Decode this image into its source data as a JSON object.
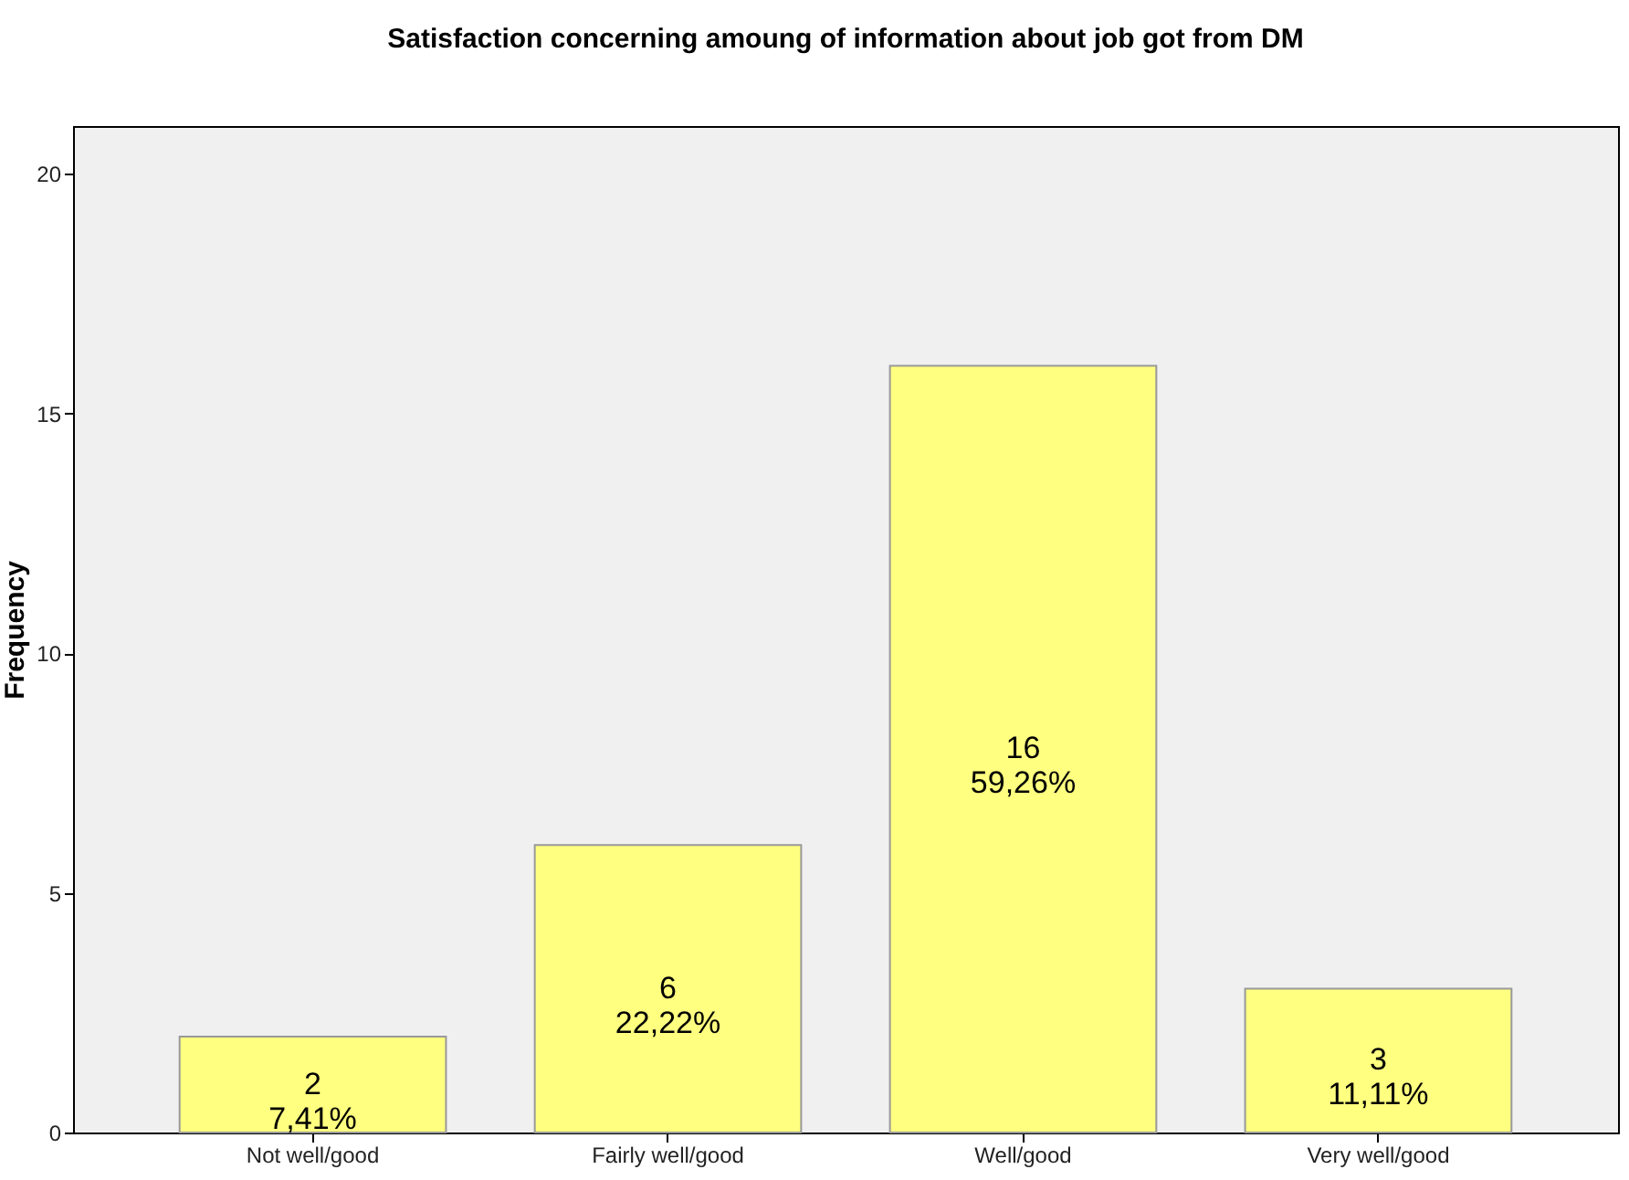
{
  "chart_data": {
    "type": "bar",
    "title": "Satisfaction concerning amoung of information about job got from DM",
    "ylabel": "Frequency",
    "categories": [
      "Not well/good",
      "Fairly well/good",
      "Well/good",
      "Very well/good"
    ],
    "values": [
      2,
      6,
      16,
      3
    ],
    "color": "#ffff80",
    "value_labels": [
      "2\n7,41%",
      "6\n22,22%",
      "16\n59,26%",
      "3\n11,11%"
    ],
    "ylim": [
      0,
      21
    ],
    "yticks": [
      0,
      5,
      10,
      15,
      20
    ],
    "grid": false
  }
}
